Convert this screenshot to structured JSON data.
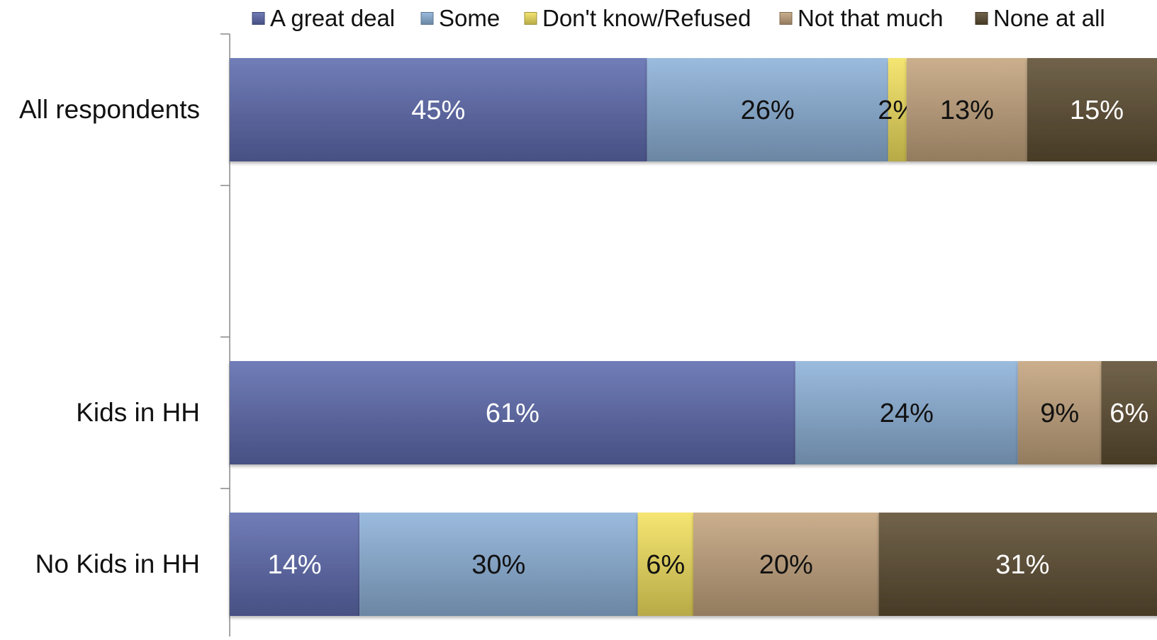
{
  "chart_data": {
    "type": "bar",
    "orientation": "horizontal",
    "stacked": true,
    "title": "",
    "xlabel": "",
    "ylabel": "",
    "xlim": [
      0,
      100
    ],
    "grid": false,
    "legend_position": "top",
    "categories": [
      "All respondents",
      "",
      "Kids in HH",
      "No Kids in HH"
    ],
    "series": [
      {
        "name": "A great deal",
        "color": "#5E6BAE",
        "label_color": "#ffffff",
        "values": [
          45,
          null,
          61,
          14
        ]
      },
      {
        "name": "Some",
        "color": "#8DB2D9",
        "label_color": "#111111",
        "values": [
          26,
          null,
          24,
          30
        ]
      },
      {
        "name": "Don't know/Refused",
        "color": "#F4E25F",
        "label_color": "#111111",
        "values": [
          2,
          null,
          null,
          6
        ]
      },
      {
        "name": "Not that much",
        "color": "#C4A47E",
        "label_color": "#111111",
        "values": [
          13,
          null,
          9,
          20
        ]
      },
      {
        "name": "None at all",
        "color": "#5E4E33",
        "label_color": "#ffffff",
        "values": [
          15,
          null,
          6,
          31
        ]
      }
    ],
    "value_suffix": "%"
  }
}
